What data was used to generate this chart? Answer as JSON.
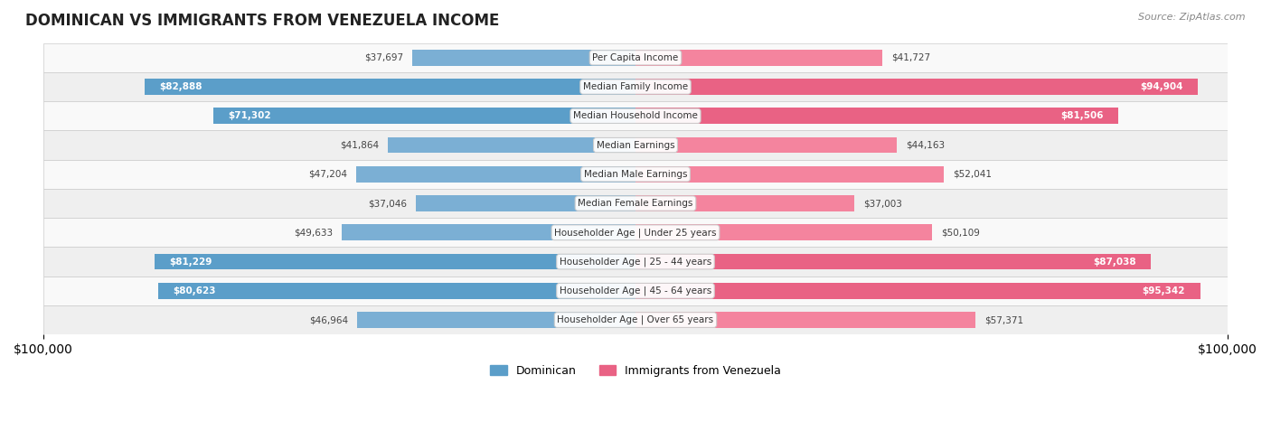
{
  "title": "DOMINICAN VS IMMIGRANTS FROM VENEZUELA INCOME",
  "source": "Source: ZipAtlas.com",
  "categories": [
    "Per Capita Income",
    "Median Family Income",
    "Median Household Income",
    "Median Earnings",
    "Median Male Earnings",
    "Median Female Earnings",
    "Householder Age | Under 25 years",
    "Householder Age | 25 - 44 years",
    "Householder Age | 45 - 64 years",
    "Householder Age | Over 65 years"
  ],
  "dominican": [
    37697,
    82888,
    71302,
    41864,
    47204,
    37046,
    49633,
    81229,
    80623,
    46964
  ],
  "venezuela": [
    41727,
    94904,
    81506,
    44163,
    52041,
    37003,
    50109,
    87038,
    95342,
    57371
  ],
  "dominican_color": "#7bafd4",
  "venezuela_color": "#f4849e",
  "dominican_dark_color": "#5b9ec9",
  "venezuela_dark_color": "#e96284",
  "legend_dominican": "Dominican",
  "legend_venezuela": "Immigrants from Venezuela",
  "xlim": 100000,
  "bar_height": 0.55,
  "background_color": "#f5f5f5",
  "row_bg_light": "#f9f9f9",
  "row_bg_dark": "#efefef"
}
